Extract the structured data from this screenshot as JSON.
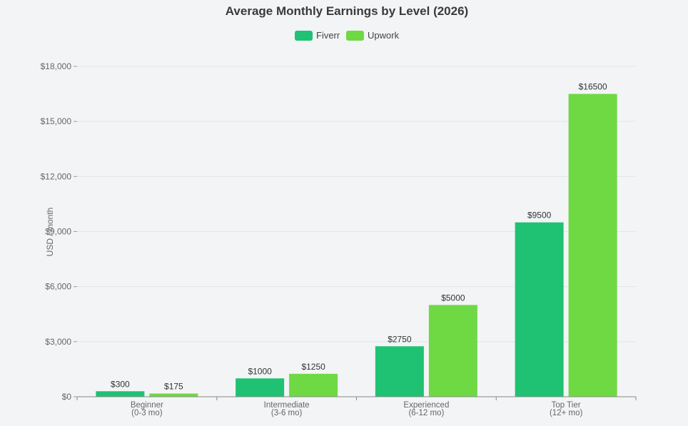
{
  "chart_data": {
    "type": "bar",
    "title": "Average Monthly Earnings by Level (2026)",
    "ylabel": "USD / month",
    "xlabel": "",
    "categories": [
      [
        "Beginner",
        "(0-3 mo)"
      ],
      [
        "Intermediate",
        "(3-6 mo)"
      ],
      [
        "Experienced",
        "(6-12 mo)"
      ],
      [
        "Top Tier",
        "(12+ mo)"
      ]
    ],
    "series": [
      {
        "name": "Fiverr",
        "color": "#1fc272",
        "values": [
          300,
          1000,
          2750,
          9500
        ]
      },
      {
        "name": "Upwork",
        "color": "#6fd944",
        "values": [
          175,
          1250,
          5000,
          16500
        ]
      }
    ],
    "ylim": [
      0,
      18000
    ],
    "yticks": [
      0,
      3000,
      6000,
      9000,
      12000,
      15000,
      18000
    ],
    "ytick_labels": [
      "$0",
      "$3,000",
      "$6,000",
      "$9,000",
      "$12,000",
      "$15,000",
      "$18,000"
    ],
    "data_label_prefix": "$",
    "grid": true,
    "legend_position": "top-center"
  }
}
